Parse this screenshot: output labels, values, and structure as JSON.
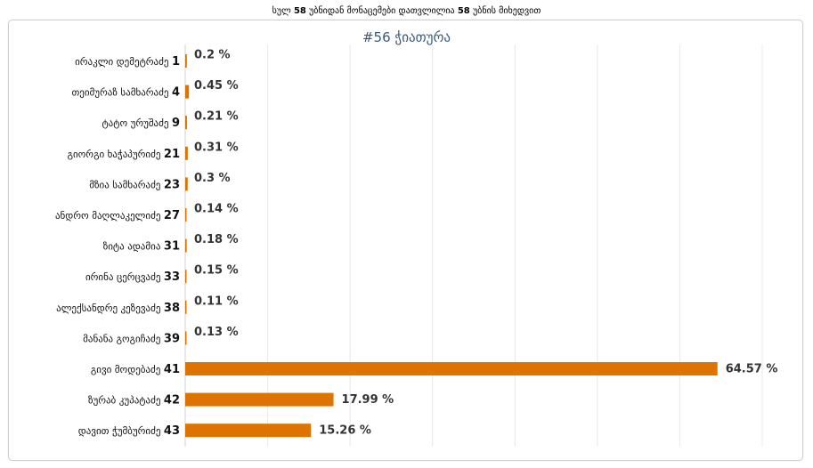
{
  "header": {
    "prefix": "სულ",
    "counted": "58",
    "middle": "უბნიდან მონაცემები დათვლილია",
    "total": "58",
    "suffix": "უბნის მიხედვით"
  },
  "colors": {
    "bar": "#dd7300",
    "grid": "#e8e8e8",
    "title": "#3a5a78"
  },
  "chart_data": {
    "type": "bar",
    "orientation": "horizontal",
    "title": "#56 ჭიათურა",
    "xlabel": "",
    "ylabel": "",
    "xlim": [
      0,
      70
    ],
    "grid": true,
    "categories": [
      {
        "name": "ირაკლი დემეტრაძე",
        "number": "1"
      },
      {
        "name": "თეიმურაზ სამხარაძე",
        "number": "4"
      },
      {
        "name": "ტატო ურუშაძე",
        "number": "9"
      },
      {
        "name": "გიორგი ხაჭაპურიძე",
        "number": "21"
      },
      {
        "name": "მზია სამხარაძე",
        "number": "23"
      },
      {
        "name": "ანდრო მაღლაკელიძე",
        "number": "27"
      },
      {
        "name": "ზიტა ადამია",
        "number": "31"
      },
      {
        "name": "ირინა ცერცვაძე",
        "number": "33"
      },
      {
        "name": "ალექსანდრე კეზევაძე",
        "number": "38"
      },
      {
        "name": "მანანა გოგიჩაძე",
        "number": "39"
      },
      {
        "name": "გივი მოდებაძე",
        "number": "41"
      },
      {
        "name": "ზურაბ კუპატაძე",
        "number": "42"
      },
      {
        "name": "დავით ჭუმბურიძე",
        "number": "43"
      }
    ],
    "values": [
      0.2,
      0.45,
      0.21,
      0.31,
      0.3,
      0.14,
      0.18,
      0.15,
      0.11,
      0.13,
      64.57,
      17.99,
      15.26
    ],
    "value_labels": [
      "0.2 %",
      "0.45 %",
      "0.21 %",
      "0.31 %",
      "0.3 %",
      "0.14 %",
      "0.18 %",
      "0.15 %",
      "0.11 %",
      "0.13 %",
      "64.57 %",
      "17.99 %",
      "15.26 %"
    ]
  }
}
